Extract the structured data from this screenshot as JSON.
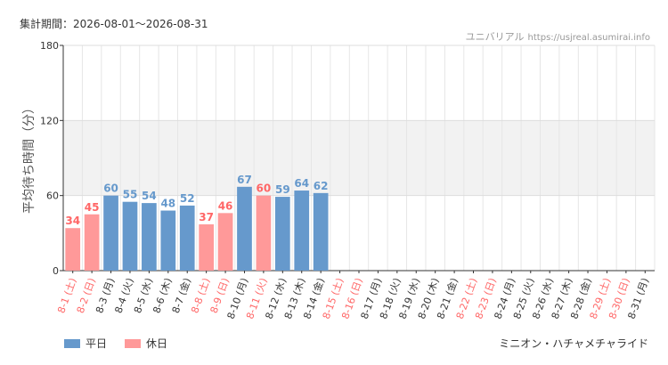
{
  "header": {
    "period": "集計期間：2026-08-01〜2026-08-31",
    "site_name": "ユニバリアル",
    "site_url": "https://usjreal.asumirai.info"
  },
  "footer": {
    "attraction": "ミニオン・ハチャメチャライド"
  },
  "colors": {
    "weekday": "#6699cc",
    "holiday": "#ff9999",
    "weekday_text": "#333333",
    "holiday_text": "#ff6666"
  },
  "chart_data": {
    "type": "bar",
    "ylabel": "平均待ち時間（分）",
    "ylim": [
      0,
      180
    ],
    "yticks": [
      0,
      60,
      120,
      180
    ],
    "categories": [
      "8-1 (土)",
      "8-2 (日)",
      "8-3 (月)",
      "8-4 (火)",
      "8-5 (水)",
      "8-6 (木)",
      "8-7 (金)",
      "8-8 (土)",
      "8-9 (日)",
      "8-10 (月)",
      "8-11 (火)",
      "8-12 (水)",
      "8-13 (木)",
      "8-14 (金)",
      "8-15 (土)",
      "8-16 (日)",
      "8-17 (月)",
      "8-18 (火)",
      "8-19 (水)",
      "8-20 (木)",
      "8-21 (金)",
      "8-22 (土)",
      "8-23 (日)",
      "8-24 (月)",
      "8-25 (火)",
      "8-26 (水)",
      "8-27 (木)",
      "8-28 (金)",
      "8-29 (土)",
      "8-30 (日)",
      "8-31 (月)"
    ],
    "day_types": [
      "holiday",
      "holiday",
      "weekday",
      "weekday",
      "weekday",
      "weekday",
      "weekday",
      "holiday",
      "holiday",
      "weekday",
      "holiday",
      "weekday",
      "weekday",
      "weekday",
      "holiday",
      "holiday",
      "weekday",
      "weekday",
      "weekday",
      "weekday",
      "weekday",
      "holiday",
      "holiday",
      "weekday",
      "weekday",
      "weekday",
      "weekday",
      "weekday",
      "holiday",
      "holiday",
      "weekday"
    ],
    "values": [
      34,
      45,
      60,
      55,
      54,
      48,
      52,
      37,
      46,
      67,
      60,
      59,
      64,
      62,
      null,
      null,
      null,
      null,
      null,
      null,
      null,
      null,
      null,
      null,
      null,
      null,
      null,
      null,
      null,
      null,
      null
    ],
    "legend": [
      {
        "name": "平日",
        "type": "weekday"
      },
      {
        "name": "休日",
        "type": "holiday"
      }
    ],
    "legend_position": "bottom-left",
    "grid": true
  }
}
